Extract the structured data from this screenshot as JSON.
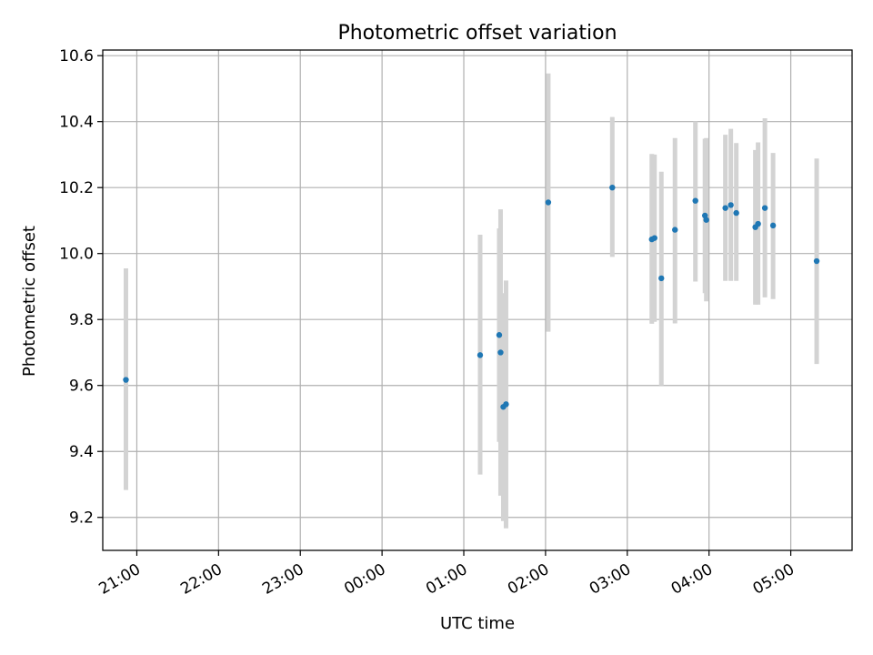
{
  "chart_data": {
    "type": "scatter",
    "title": "Photometric offset variation",
    "xlabel": "UTC time",
    "ylabel": "Photometric offset",
    "ylim": [
      9.1,
      10.617
    ],
    "xlim": [
      "20:35",
      "05:45"
    ],
    "grid": true,
    "legend": "none",
    "x_tick_labels": [
      "21:00",
      "22:00",
      "23:00",
      "00:00",
      "01:00",
      "02:00",
      "03:00",
      "04:00",
      "05:00"
    ],
    "y_tick_labels": [
      "9.2",
      "9.4",
      "9.6",
      "9.8",
      "10.0",
      "10.2",
      "10.4",
      "10.6"
    ],
    "colors": {
      "marker": "#1f77b4",
      "errorbar": "#d3d3d3",
      "grid": "#b0b0b0"
    },
    "series": [
      {
        "points": [
          {
            "t": "20:52",
            "y": 9.617,
            "lo": 9.283,
            "hi": 9.955
          },
          {
            "t": "01:12",
            "y": 9.692,
            "lo": 9.33,
            "hi": 10.057
          },
          {
            "t": "01:26",
            "y": 9.753,
            "lo": 9.429,
            "hi": 10.076
          },
          {
            "t": "01:27",
            "y": 9.7,
            "lo": 9.266,
            "hi": 10.134
          },
          {
            "t": "01:29",
            "y": 9.535,
            "lo": 9.189,
            "hi": 9.88
          },
          {
            "t": "01:31",
            "y": 9.543,
            "lo": 9.167,
            "hi": 9.918
          },
          {
            "t": "02:02",
            "y": 10.155,
            "lo": 9.763,
            "hi": 10.546
          },
          {
            "t": "02:49",
            "y": 10.2,
            "lo": 9.99,
            "hi": 10.414
          },
          {
            "t": "03:18",
            "y": 10.043,
            "lo": 9.787,
            "hi": 10.302
          },
          {
            "t": "03:20",
            "y": 10.047,
            "lo": 9.793,
            "hi": 10.3
          },
          {
            "t": "03:25",
            "y": 9.925,
            "lo": 9.6,
            "hi": 10.248
          },
          {
            "t": "03:35",
            "y": 10.072,
            "lo": 9.788,
            "hi": 10.35
          },
          {
            "t": "03:50",
            "y": 10.16,
            "lo": 9.915,
            "hi": 10.4
          },
          {
            "t": "03:57",
            "y": 10.115,
            "lo": 9.88,
            "hi": 10.348
          },
          {
            "t": "03:58",
            "y": 10.102,
            "lo": 9.855,
            "hi": 10.35
          },
          {
            "t": "04:12",
            "y": 10.138,
            "lo": 9.917,
            "hi": 10.36
          },
          {
            "t": "04:16",
            "y": 10.147,
            "lo": 9.917,
            "hi": 10.378
          },
          {
            "t": "04:20",
            "y": 10.123,
            "lo": 9.917,
            "hi": 10.335
          },
          {
            "t": "04:34",
            "y": 10.08,
            "lo": 9.845,
            "hi": 10.314
          },
          {
            "t": "04:36",
            "y": 10.09,
            "lo": 9.845,
            "hi": 10.337
          },
          {
            "t": "04:41",
            "y": 10.138,
            "lo": 9.867,
            "hi": 10.41
          },
          {
            "t": "04:47",
            "y": 10.085,
            "lo": 9.862,
            "hi": 10.305
          },
          {
            "t": "05:19",
            "y": 9.977,
            "lo": 9.665,
            "hi": 10.288
          }
        ]
      }
    ]
  }
}
